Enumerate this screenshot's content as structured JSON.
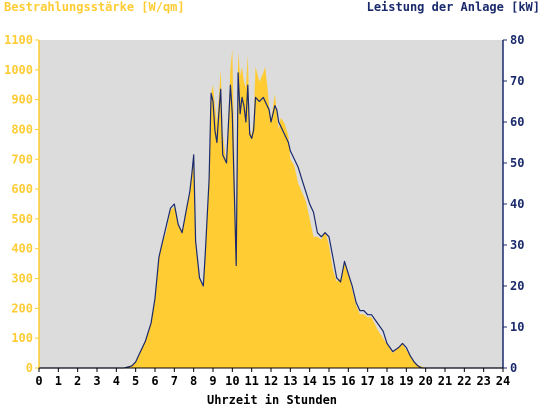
{
  "chart_data": {
    "type": "area",
    "y_left_label": "Bestrahlungsstärke [W/qm]",
    "y_right_label": "Leistung der Anlage [kW]",
    "xlabel": "Uhrzeit in Stunden",
    "xlim": [
      0,
      24
    ],
    "x_ticks": [
      "0",
      "1",
      "2",
      "3",
      "4",
      "5",
      "6",
      "7",
      "8",
      "9",
      "10",
      "11",
      "12",
      "13",
      "14",
      "15",
      "16",
      "17",
      "18",
      "19",
      "20",
      "21",
      "22",
      "23",
      "24"
    ],
    "ylim_left": [
      0,
      1100
    ],
    "y_left_ticks": [
      "0",
      "100",
      "200",
      "300",
      "400",
      "500",
      "600",
      "700",
      "800",
      "900",
      "1000",
      "1100"
    ],
    "ylim_right": [
      0,
      80
    ],
    "y_right_ticks": [
      "0",
      "10",
      "20",
      "30",
      "40",
      "50",
      "60",
      "70",
      "80"
    ],
    "grid": false,
    "colors": {
      "irradiance": "#ffcc33",
      "power": "#1a2a6c",
      "plot_background": "#dcdcdc",
      "left_axis": "#ffcc33",
      "right_axis": "#1a2a6c"
    },
    "series": [
      {
        "name": "Bestrahlungsstärke [W/qm]",
        "axis": "left",
        "style": "area",
        "x": [
          0,
          4.4,
          4.8,
          5.0,
          5.2,
          5.5,
          5.8,
          6.0,
          6.2,
          6.4,
          6.6,
          6.8,
          7.0,
          7.2,
          7.4,
          7.6,
          7.8,
          7.9,
          8.0,
          8.1,
          8.3,
          8.5,
          8.6,
          8.8,
          8.9,
          9.0,
          9.1,
          9.2,
          9.3,
          9.4,
          9.5,
          9.7,
          9.9,
          10.0,
          10.1,
          10.2,
          10.3,
          10.4,
          10.5,
          10.6,
          10.7,
          10.8,
          10.9,
          11.0,
          11.1,
          11.2,
          11.4,
          11.6,
          11.7,
          11.8,
          11.9,
          12.0,
          12.2,
          12.3,
          12.4,
          12.5,
          12.7,
          12.9,
          13.0,
          13.2,
          13.4,
          13.6,
          13.8,
          14.0,
          14.2,
          14.4,
          14.6,
          14.8,
          15.0,
          15.2,
          15.4,
          15.6,
          15.8,
          16.0,
          16.2,
          16.4,
          16.6,
          16.8,
          17.0,
          17.2,
          17.5,
          17.8,
          18.0,
          18.3,
          18.6,
          18.8,
          19.0,
          19.2,
          19.4,
          19.6,
          19.8,
          20.0,
          20.3,
          20.6,
          24
        ],
        "y": [
          0,
          0,
          10,
          20,
          50,
          90,
          150,
          240,
          370,
          420,
          460,
          530,
          540,
          480,
          460,
          520,
          580,
          640,
          720,
          420,
          300,
          270,
          380,
          620,
          920,
          950,
          880,
          820,
          910,
          1000,
          790,
          680,
          1000,
          1070,
          720,
          380,
          1060,
          980,
          1010,
          960,
          940,
          1050,
          800,
          780,
          830,
          1010,
          960,
          990,
          1010,
          950,
          880,
          830,
          920,
          850,
          800,
          840,
          820,
          780,
          700,
          680,
          620,
          590,
          560,
          500,
          440,
          440,
          430,
          460,
          410,
          330,
          290,
          300,
          350,
          320,
          260,
          210,
          180,
          180,
          170,
          170,
          130,
          100,
          80,
          50,
          70,
          80,
          60,
          40,
          20,
          10,
          5,
          0,
          0,
          0,
          0
        ]
      },
      {
        "name": "Leistung der Anlage [kW]",
        "axis": "right",
        "style": "line",
        "x": [
          0,
          4.4,
          4.8,
          5.0,
          5.2,
          5.5,
          5.8,
          6.0,
          6.2,
          6.4,
          6.6,
          6.8,
          7.0,
          7.2,
          7.4,
          7.6,
          7.8,
          7.9,
          8.0,
          8.1,
          8.3,
          8.5,
          8.6,
          8.8,
          8.9,
          9.0,
          9.1,
          9.2,
          9.3,
          9.4,
          9.5,
          9.7,
          9.9,
          10.0,
          10.1,
          10.2,
          10.3,
          10.4,
          10.5,
          10.6,
          10.7,
          10.8,
          10.9,
          11.0,
          11.1,
          11.2,
          11.4,
          11.6,
          11.7,
          11.8,
          11.9,
          12.0,
          12.2,
          12.3,
          12.4,
          12.5,
          12.7,
          12.9,
          13.0,
          13.2,
          13.4,
          13.6,
          13.8,
          14.0,
          14.2,
          14.4,
          14.6,
          14.8,
          15.0,
          15.2,
          15.4,
          15.6,
          15.8,
          16.0,
          16.2,
          16.4,
          16.6,
          16.8,
          17.0,
          17.2,
          17.5,
          17.8,
          18.0,
          18.3,
          18.6,
          18.8,
          19.0,
          19.2,
          19.4,
          19.6,
          19.8,
          20.0,
          20.3,
          20.6,
          24
        ],
        "y": [
          0,
          0,
          0.5,
          1.5,
          3.5,
          6.5,
          11,
          17,
          27,
          31,
          35,
          39,
          40,
          35,
          33,
          38,
          43,
          47,
          52,
          31,
          22,
          20,
          28,
          46,
          67,
          65,
          58,
          55,
          62,
          68,
          52,
          50,
          69,
          62,
          43,
          25,
          72,
          62,
          66,
          64,
          60,
          69,
          57,
          56,
          58,
          66,
          65,
          66,
          65,
          64,
          63,
          60,
          64,
          63,
          60,
          59,
          57,
          55,
          53,
          51,
          49,
          46,
          43,
          40,
          38,
          33,
          32,
          33,
          32,
          27,
          22,
          21,
          26,
          23,
          20,
          16,
          14,
          14,
          13,
          13,
          11,
          9,
          6,
          4,
          5,
          6,
          5,
          3,
          1.5,
          0.5,
          0,
          0,
          0,
          0,
          0
        ]
      }
    ]
  }
}
